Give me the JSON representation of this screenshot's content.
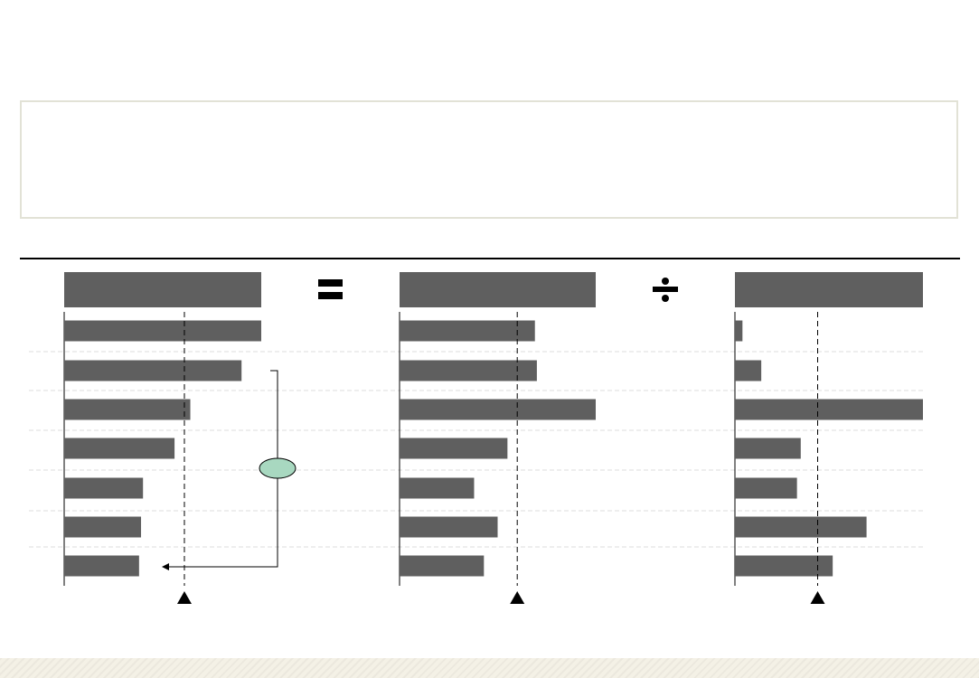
{
  "title": "",
  "summary": "",
  "colors": {
    "bar": "#5f5f5f",
    "axis": "#000000",
    "row_divider": "#dddddd",
    "bracket_oval": "#a8d8c0",
    "rule": "#000000"
  },
  "icons": {
    "equals": "equals-icon",
    "divide": "divide-icon",
    "average_marker": "triangle-up-icon"
  },
  "chart_data": [
    {
      "type": "bar",
      "orientation": "horizontal",
      "title": "",
      "categories": [
        "",
        "",
        "",
        "",
        "",
        "",
        ""
      ],
      "values": [
        100,
        90,
        64,
        56,
        40,
        39,
        38
      ],
      "xlim": [
        0,
        100
      ],
      "average": 61,
      "grid": false,
      "annotation": {
        "type": "bracket",
        "from_row": 1,
        "to_row": 6,
        "label": ""
      }
    },
    {
      "type": "bar",
      "orientation": "horizontal",
      "title": "",
      "categories": [
        "",
        "",
        "",
        "",
        "",
        "",
        ""
      ],
      "values": [
        69,
        70,
        100,
        55,
        38,
        50,
        43
      ],
      "xlim": [
        0,
        100
      ],
      "average": 60,
      "grid": false
    },
    {
      "type": "bar",
      "orientation": "horizontal",
      "title": "",
      "categories": [
        "",
        "",
        "",
        "",
        "",
        "",
        ""
      ],
      "values": [
        4,
        14,
        100,
        35,
        33,
        70,
        52
      ],
      "xlim": [
        0,
        100
      ],
      "average": 44,
      "grid": false
    }
  ]
}
